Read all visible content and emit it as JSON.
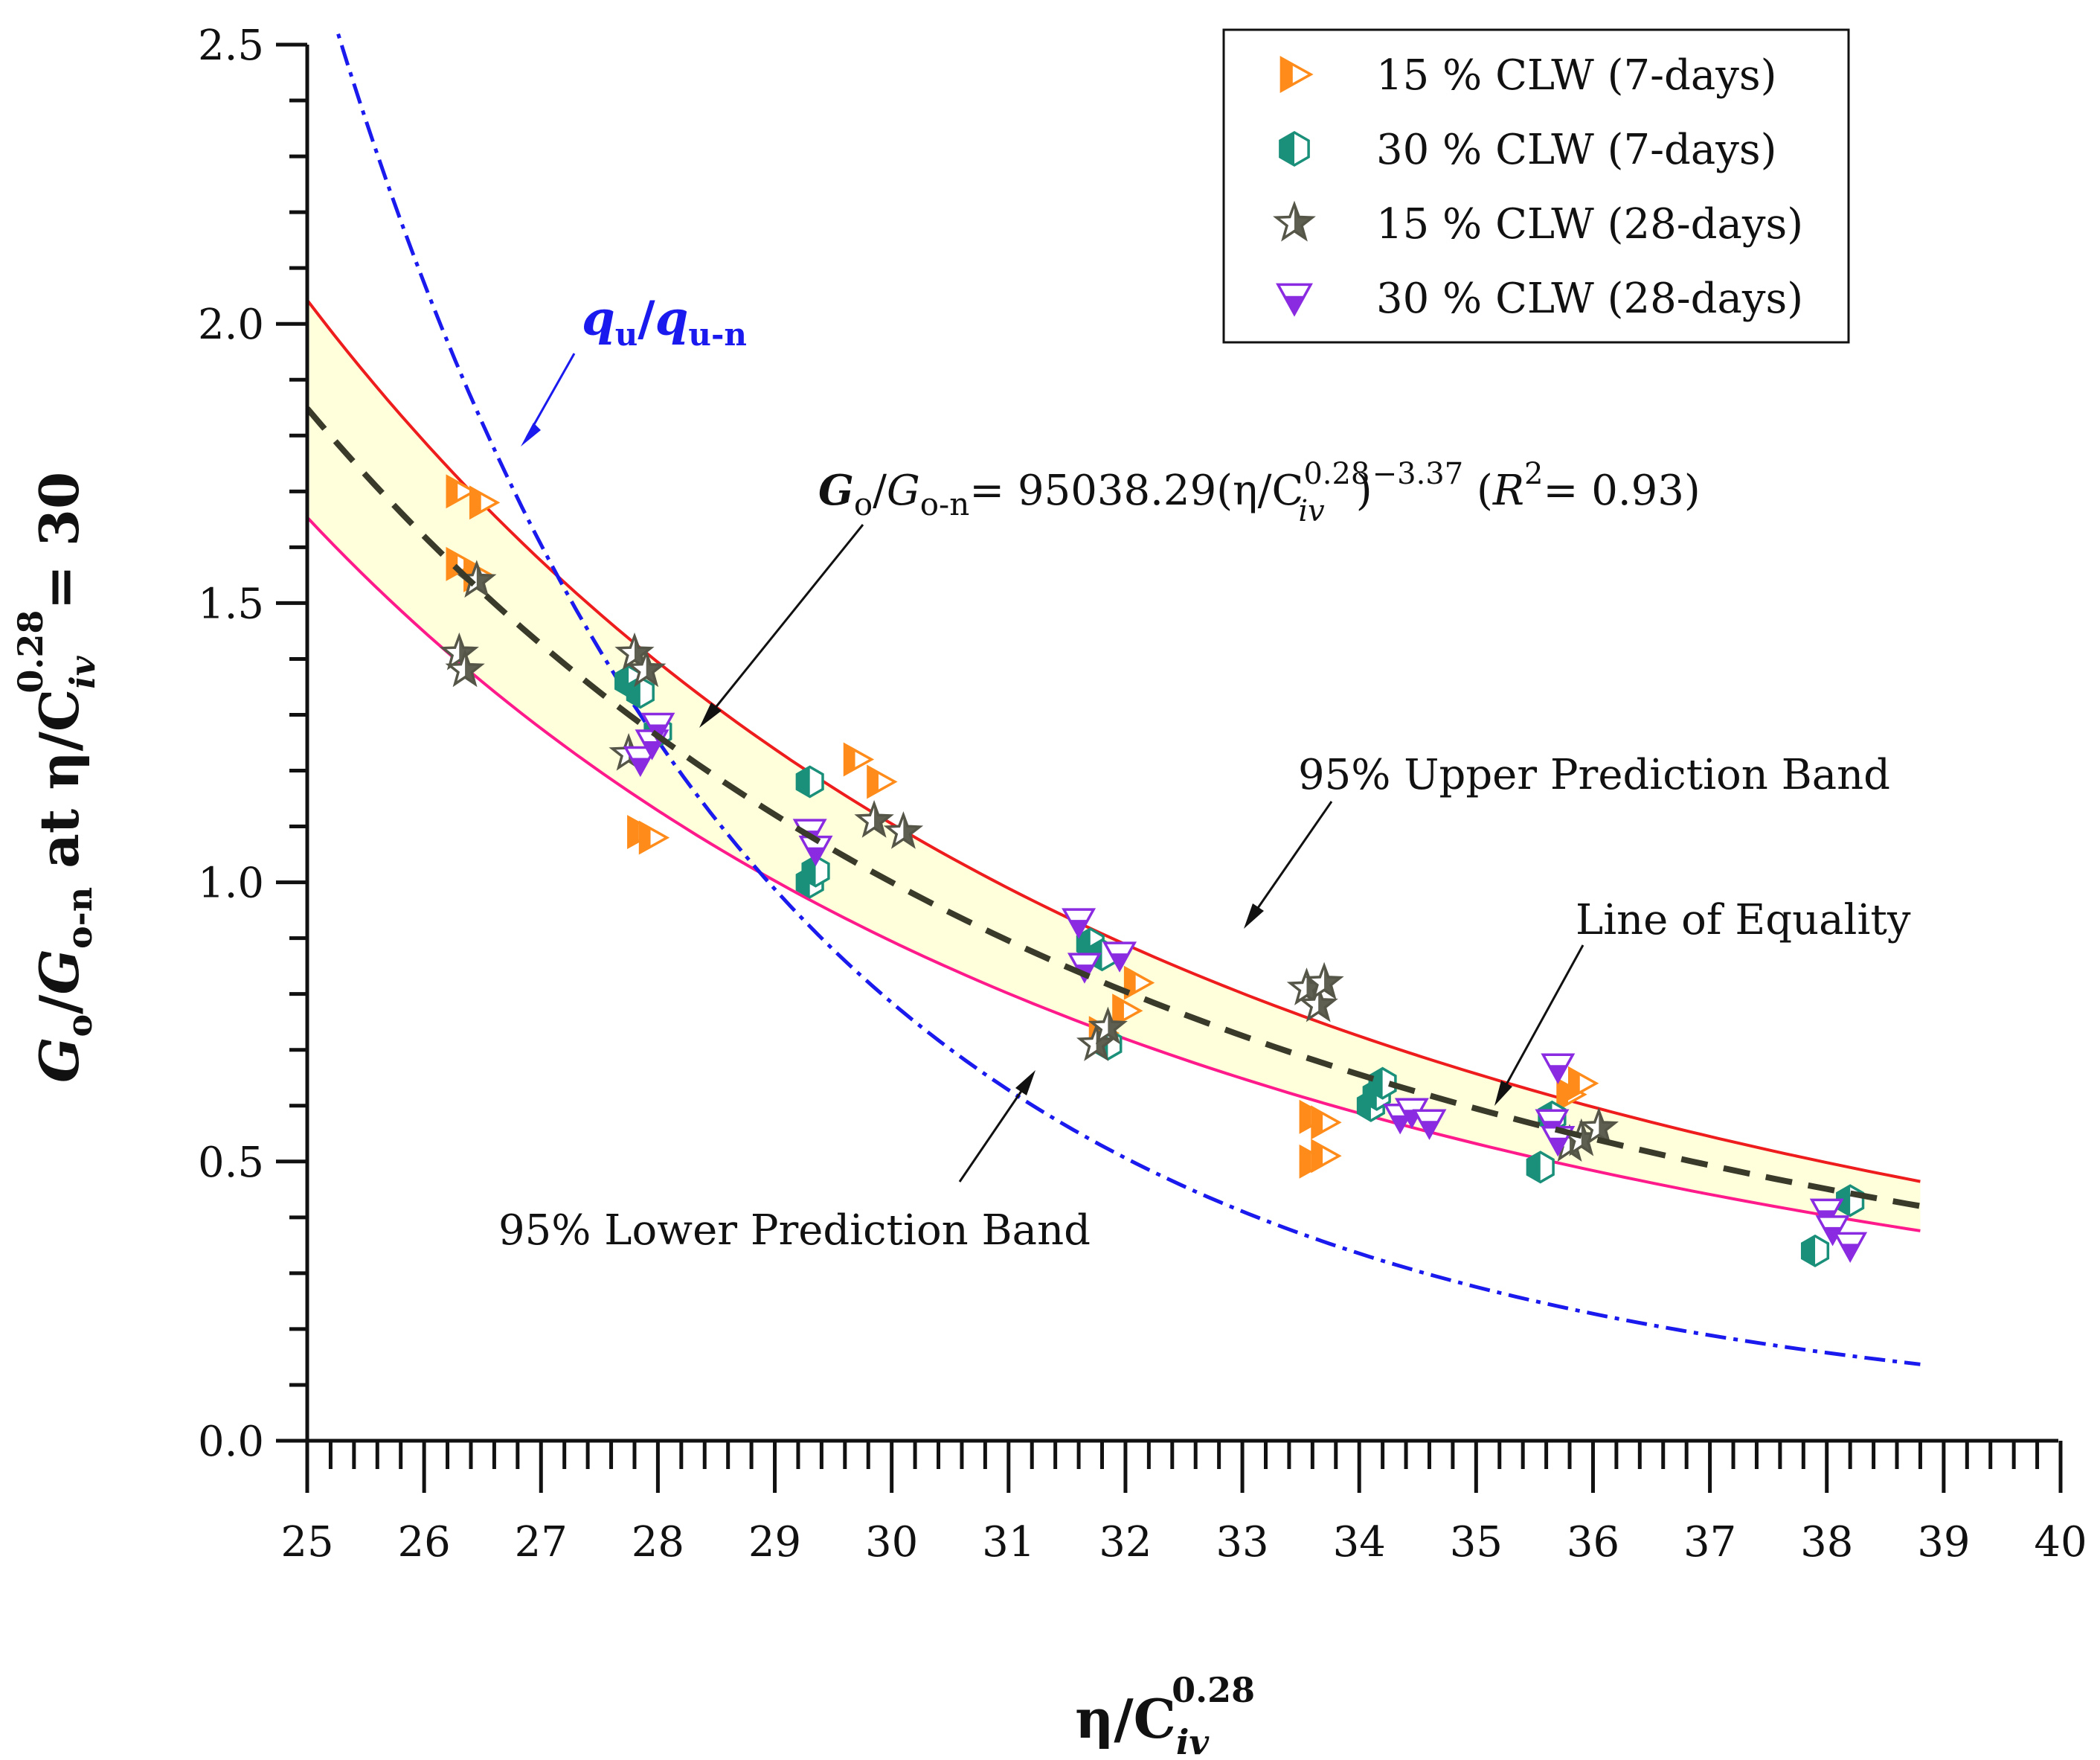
{
  "chart_data": {
    "type": "scatter",
    "x_axis": {
      "range": [
        25,
        40
      ],
      "ticks": [
        "25",
        "26",
        "27",
        "28",
        "29",
        "30",
        "31",
        "32",
        "33",
        "34",
        "35",
        "36",
        "37",
        "38",
        "39",
        "40"
      ]
    },
    "y_axis": {
      "range": [
        0,
        2.5
      ],
      "ticks": [
        "0.0",
        "0.5",
        "1.0",
        "1.5",
        "2.0",
        "2.5"
      ]
    },
    "xlabel": {
      "text": "η/C",
      "sub": "iv",
      "sup": "0.28"
    },
    "ylabel": {
      "g1": "G",
      "o1": "o",
      "slash": "/",
      "g2": "G",
      "on": "o-n",
      "mid": " at η/C",
      "sub": "iv",
      "sup": "0.28",
      "end": "= 30"
    },
    "legend": {
      "position": "top-right",
      "entries": [
        {
          "label": "15 % CLW (7-days)",
          "marker": "triangle-right",
          "color": "#ff8c1a"
        },
        {
          "label": "30 % CLW (7-days)",
          "marker": "hexagon",
          "color": "#1a8f7a"
        },
        {
          "label": "15 % CLW (28-days)",
          "marker": "star",
          "color": "#555548"
        },
        {
          "label": "30 % CLW (28-days)",
          "marker": "triangle-down",
          "color": "#8a2be2"
        }
      ]
    },
    "series": [
      {
        "name": "15 % CLW (7-days)",
        "marker": "triangle-right",
        "color": "#ff8c1a",
        "points": [
          [
            26.3,
            1.7
          ],
          [
            26.5,
            1.68
          ],
          [
            26.3,
            1.57
          ],
          [
            26.45,
            1.55
          ],
          [
            27.85,
            1.09
          ],
          [
            27.95,
            1.08
          ],
          [
            29.7,
            1.22
          ],
          [
            29.9,
            1.18
          ],
          [
            31.8,
            0.73
          ],
          [
            32.0,
            0.77
          ],
          [
            32.1,
            0.82
          ],
          [
            33.6,
            0.58
          ],
          [
            33.7,
            0.57
          ],
          [
            33.6,
            0.5
          ],
          [
            33.7,
            0.51
          ],
          [
            35.8,
            0.62
          ],
          [
            35.9,
            0.64
          ]
        ]
      },
      {
        "name": "30 % CLW (7-days)",
        "marker": "hexagon",
        "color": "#1a8f7a",
        "points": [
          [
            27.75,
            1.36
          ],
          [
            27.85,
            1.34
          ],
          [
            28.0,
            1.27
          ],
          [
            29.3,
            1.18
          ],
          [
            29.3,
            1.0
          ],
          [
            29.35,
            1.02
          ],
          [
            31.7,
            0.89
          ],
          [
            31.8,
            0.87
          ],
          [
            31.85,
            0.71
          ],
          [
            34.1,
            0.6
          ],
          [
            34.15,
            0.62
          ],
          [
            34.2,
            0.64
          ],
          [
            35.55,
            0.49
          ],
          [
            35.65,
            0.58
          ],
          [
            37.9,
            0.34
          ],
          [
            38.2,
            0.43
          ]
        ]
      },
      {
        "name": "15 % CLW (28-days)",
        "marker": "star",
        "color": "#555548",
        "points": [
          [
            26.3,
            1.41
          ],
          [
            26.35,
            1.38
          ],
          [
            26.45,
            1.54
          ],
          [
            27.8,
            1.41
          ],
          [
            27.9,
            1.38
          ],
          [
            27.75,
            1.23
          ],
          [
            29.85,
            1.11
          ],
          [
            30.1,
            1.09
          ],
          [
            31.75,
            0.71
          ],
          [
            31.85,
            0.74
          ],
          [
            33.55,
            0.81
          ],
          [
            33.65,
            0.78
          ],
          [
            33.7,
            0.82
          ],
          [
            35.8,
            0.53
          ],
          [
            35.9,
            0.54
          ],
          [
            36.05,
            0.56
          ]
        ]
      },
      {
        "name": "30 % CLW (28-days)",
        "marker": "triangle-down",
        "color": "#8a2be2",
        "points": [
          [
            27.85,
            1.22
          ],
          [
            27.95,
            1.25
          ],
          [
            28.0,
            1.28
          ],
          [
            29.3,
            1.09
          ],
          [
            29.35,
            1.06
          ],
          [
            31.6,
            0.93
          ],
          [
            31.65,
            0.85
          ],
          [
            31.95,
            0.87
          ],
          [
            34.35,
            0.58
          ],
          [
            34.45,
            0.59
          ],
          [
            34.6,
            0.57
          ],
          [
            35.7,
            0.67
          ],
          [
            35.65,
            0.57
          ],
          [
            35.7,
            0.54
          ],
          [
            38.0,
            0.41
          ],
          [
            38.05,
            0.38
          ],
          [
            38.2,
            0.35
          ]
        ]
      }
    ],
    "curves": {
      "fit": {
        "a": 95038.29,
        "b": -3.37,
        "x_range": [
          25,
          38.8
        ],
        "color": "#3a3a2a"
      },
      "upper": {
        "a": 105000,
        "b": -3.37,
        "x_range": [
          25,
          38.8
        ],
        "color": "#ee1c1c"
      },
      "lower": {
        "a": 85000,
        "b": -3.37,
        "x_range": [
          25,
          38.8
        ],
        "color": "#ff1a8c"
      },
      "qu": {
        "a": 8400000000.0,
        "b": -6.79,
        "x_range": [
          25,
          38.8
        ],
        "color": "#1a1aee"
      }
    },
    "band_fill": "#ffffdb",
    "annotations": {
      "qu_label": {
        "q1": "q",
        "u1": "u",
        "slash": "/",
        "q2": "q",
        "un": "u-n"
      },
      "equation": {
        "g1": "G",
        "o1": "o",
        "slash": "/",
        "g2": "G",
        "on": "o-n",
        "eq": "= 95038.29(η/C",
        "sup": "0.28",
        "sub": "iv",
        "close": ")",
        "exp": "−3.37",
        "r_open": " (",
        "r": "R",
        "r_sup": "2",
        "r_val": "= 0.93)"
      },
      "upper_band": "95% Upper Prediction Band",
      "lower_band": "95% Lower Prediction Band",
      "equality": "Line of Equality"
    }
  }
}
